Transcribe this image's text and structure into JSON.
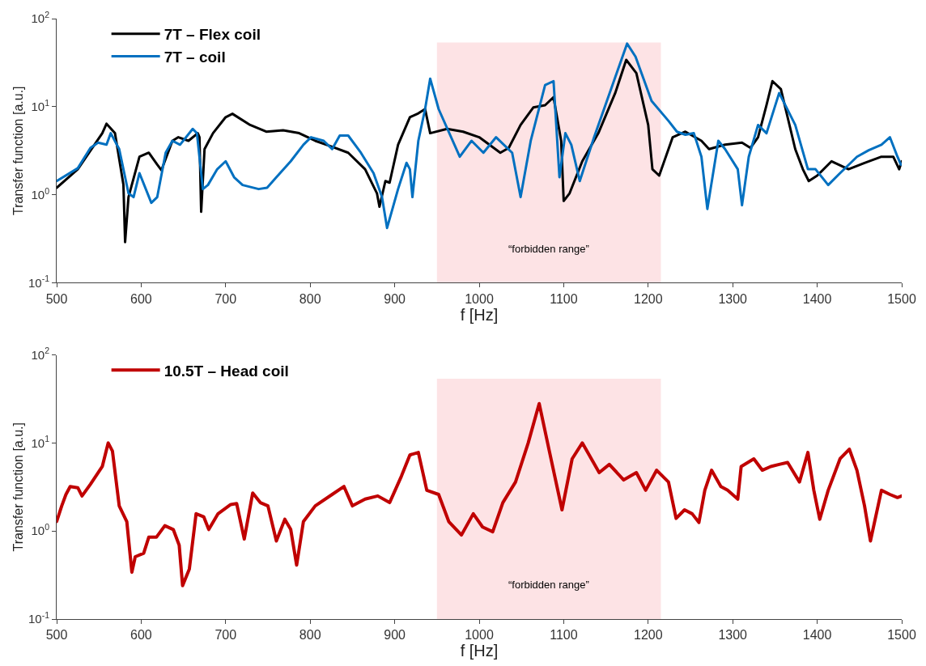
{
  "chart_data": [
    {
      "type": "line",
      "xlabel": "f [Hz]",
      "ylabel": "Transfer function [a.u.]",
      "log": "y",
      "xlim": [
        500,
        1500
      ],
      "xticks": [
        500,
        600,
        700,
        800,
        900,
        1000,
        1100,
        1200,
        1300,
        1400,
        1500
      ],
      "ylim": [
        0.1,
        100
      ],
      "yticks": [
        {
          "value": 0.1,
          "label": "10$^{-1}$"
        },
        {
          "value": 1,
          "label": "10$^{0}$"
        },
        {
          "value": 10,
          "label": "10$^{1}$"
        },
        {
          "value": 100,
          "label": "10$^{2}$"
        }
      ],
      "grid": false,
      "legend": "top left",
      "line_style": "solid",
      "marker": "none",
      "bands": [
        {
          "axis": "x",
          "from": 950,
          "to": 1215,
          "label": "“forbidden range”",
          "color": "#fde3e5"
        }
      ],
      "series": [
        {
          "name": "7T – Flex coil",
          "color": "#000000",
          "x": [
            500,
            525,
            554,
            559,
            569,
            579,
            581,
            585,
            598,
            609,
            619,
            624,
            637,
            644,
            656,
            667,
            669,
            671,
            675,
            685,
            700,
            708,
            729,
            748,
            768,
            787,
            806,
            826,
            845,
            865,
            879,
            882,
            889,
            894,
            904,
            918,
            928,
            936,
            942,
            962,
            981,
            1000,
            1025,
            1035,
            1049,
            1064,
            1078,
            1088,
            1097,
            1100,
            1107,
            1122,
            1141,
            1161,
            1174,
            1186,
            1200,
            1205,
            1213,
            1229,
            1244,
            1263,
            1272,
            1291,
            1311,
            1321,
            1330,
            1340,
            1347,
            1357,
            1374,
            1383,
            1390,
            1400,
            1417,
            1437,
            1456,
            1476,
            1490,
            1497,
            1500
          ],
          "values": [
            1.2,
            1.95,
            5.0,
            6.4,
            5.0,
            1.3,
            0.29,
            0.94,
            2.7,
            3.0,
            2.2,
            1.9,
            4.1,
            4.5,
            4.1,
            5.0,
            4.5,
            0.64,
            3.3,
            5.0,
            7.6,
            8.3,
            6.2,
            5.2,
            5.4,
            5.0,
            4.1,
            3.5,
            3.0,
            1.95,
            1.04,
            0.73,
            1.43,
            1.37,
            3.7,
            7.6,
            8.4,
            9.4,
            5.0,
            5.6,
            5.2,
            4.5,
            3.0,
            3.4,
            6.2,
            9.8,
            10.4,
            12.8,
            4.1,
            0.85,
            1.04,
            2.4,
            5.0,
            14.3,
            34,
            24,
            6.2,
            1.95,
            1.65,
            4.5,
            5.2,
            4.1,
            3.3,
            3.7,
            3.9,
            3.4,
            4.5,
            10.4,
            19.5,
            15.8,
            3.3,
            1.95,
            1.43,
            1.65,
            2.4,
            1.95,
            2.3,
            2.7,
            2.7,
            1.95,
            2.4
          ]
        },
        {
          "name": "7T – coil",
          "color": "#0070c0",
          "x": [
            500,
            525,
            540,
            549,
            559,
            564,
            574,
            585,
            591,
            598,
            612,
            619,
            629,
            637,
            646,
            661,
            666,
            673,
            679,
            690,
            700,
            710,
            720,
            739,
            749,
            760,
            777,
            792,
            801,
            816,
            826,
            835,
            845,
            860,
            875,
            885,
            891,
            904,
            914,
            918,
            921,
            928,
            936,
            942,
            952,
            977,
            991,
            1005,
            1020,
            1039,
            1049,
            1061,
            1078,
            1088,
            1095,
            1102,
            1109,
            1119,
            1136,
            1156,
            1175,
            1185,
            1204,
            1224,
            1234,
            1244,
            1254,
            1263,
            1270,
            1283,
            1291,
            1306,
            1311,
            1319,
            1330,
            1340,
            1355,
            1374,
            1389,
            1398,
            1413,
            1427,
            1447,
            1461,
            1476,
            1486,
            1495,
            1499
          ],
          "values": [
            1.43,
            2.0,
            3.4,
            3.9,
            3.7,
            5.0,
            3.3,
            1.04,
            0.94,
            1.76,
            0.81,
            0.94,
            3.0,
            4.1,
            3.7,
            5.6,
            5.0,
            1.16,
            1.29,
            1.95,
            2.4,
            1.58,
            1.29,
            1.16,
            1.2,
            1.58,
            2.4,
            3.7,
            4.5,
            4.1,
            3.3,
            4.7,
            4.7,
            3.0,
            1.76,
            0.94,
            0.42,
            1.16,
            2.3,
            1.95,
            0.94,
            4.1,
            9.4,
            20.8,
            9.4,
            2.7,
            4.1,
            3.0,
            4.5,
            3.0,
            0.94,
            4.1,
            17.6,
            19.5,
            1.58,
            5.0,
            3.7,
            1.43,
            4.5,
            15.8,
            52,
            37,
            11.6,
            6.9,
            5.2,
            4.8,
            5.0,
            2.7,
            0.69,
            4.1,
            3.3,
            1.95,
            0.76,
            2.7,
            6.2,
            5.0,
            14.3,
            6.2,
            1.95,
            1.95,
            1.29,
            1.76,
            2.7,
            3.2,
            3.7,
            4.5,
            2.7,
            2.2
          ]
        }
      ]
    },
    {
      "type": "line",
      "xlabel": "f [Hz]",
      "ylabel": "Transfer function [a.u.]",
      "log": "y",
      "xlim": [
        500,
        1500
      ],
      "xticks": [
        500,
        600,
        700,
        800,
        900,
        1000,
        1100,
        1200,
        1300,
        1400,
        1500
      ],
      "ylim": [
        0.1,
        100
      ],
      "yticks": [
        {
          "value": 0.1,
          "label": "10$^{-1}$"
        },
        {
          "value": 1,
          "label": "10$^{0}$"
        },
        {
          "value": 10,
          "label": "10$^{1}$"
        },
        {
          "value": 100,
          "label": "10$^{2}$"
        }
      ],
      "grid": false,
      "legend": "top left",
      "line_style": "solid",
      "marker": "none",
      "bands": [
        {
          "axis": "x",
          "from": 950,
          "to": 1215,
          "label": "“forbidden range”",
          "color": "#fde3e5"
        }
      ],
      "series": [
        {
          "name": "10.5T – Head coil",
          "color": "#c00000",
          "x": [
            500,
            506,
            511,
            516,
            525,
            530,
            540,
            554,
            561,
            566,
            574,
            583,
            589,
            593,
            603,
            609,
            618,
            628,
            638,
            645,
            649,
            657,
            665,
            674,
            680,
            691,
            706,
            713,
            722,
            732,
            741,
            750,
            760,
            770,
            777,
            784,
            792,
            806,
            826,
            840,
            850,
            865,
            880,
            894,
            908,
            918,
            928,
            938,
            952,
            964,
            979,
            993,
            1004,
            1016,
            1028,
            1043,
            1058,
            1071,
            1083,
            1098,
            1110,
            1122,
            1142,
            1154,
            1171,
            1186,
            1197,
            1210,
            1224,
            1233,
            1243,
            1252,
            1260,
            1267,
            1275,
            1286,
            1294,
            1306,
            1310,
            1325,
            1335,
            1345,
            1355,
            1365,
            1379,
            1389,
            1396,
            1403,
            1413,
            1427,
            1438,
            1447,
            1456,
            1463,
            1476,
            1486,
            1495,
            1500
          ],
          "values": [
            1.28,
            1.93,
            2.6,
            3.2,
            3.1,
            2.5,
            3.4,
            5.4,
            10,
            8.1,
            1.93,
            1.28,
            0.34,
            0.51,
            0.56,
            0.85,
            0.85,
            1.15,
            1.04,
            0.69,
            0.24,
            0.37,
            1.57,
            1.45,
            1.04,
            1.57,
            2.0,
            2.05,
            0.81,
            2.7,
            2.1,
            1.93,
            0.77,
            1.36,
            1.04,
            0.41,
            1.28,
            1.93,
            2.6,
            3.2,
            1.93,
            2.3,
            2.5,
            2.1,
            4.2,
            7.3,
            7.8,
            2.9,
            2.6,
            1.28,
            0.9,
            1.57,
            1.11,
            0.98,
            2.1,
            3.6,
            10,
            28,
            8.1,
            1.74,
            6.6,
            10,
            4.6,
            5.7,
            3.8,
            4.6,
            2.9,
            4.9,
            3.6,
            1.39,
            1.74,
            1.57,
            1.25,
            2.9,
            4.9,
            3.2,
            2.9,
            2.3,
            5.4,
            6.6,
            4.9,
            5.4,
            5.7,
            6.0,
            3.6,
            7.8,
            2.9,
            1.36,
            2.9,
            6.6,
            8.5,
            4.9,
            1.93,
            0.77,
            2.9,
            2.6,
            2.4,
            2.5
          ]
        }
      ]
    }
  ]
}
